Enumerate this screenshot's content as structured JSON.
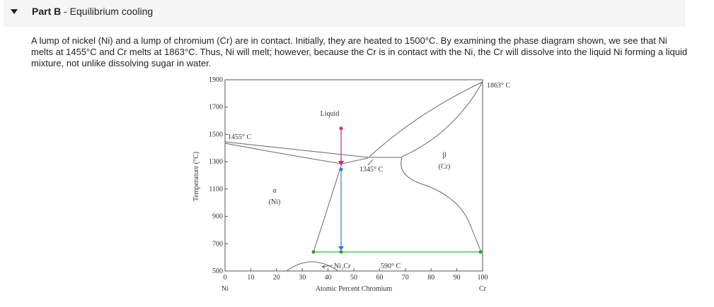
{
  "header": {
    "part": "Part B",
    "title": "- Equilibrium cooling"
  },
  "paragraph": "A lump of nickel (Ni) and a lump of chromium (Cr) are in contact. Initially, they are heated to 1500°C. By examining the phase diagram shown, we see that Ni melts at 1455°C and Cr melts at 1863°C. Thus, Ni will melt; however, because the Cr is in contact with the Ni, the Cr will dissolve into the liquid Ni forming a liquid mixture, not unlike dissolving sugar in water.",
  "figure": {
    "y_axis": {
      "label": "Temperature (°C)",
      "ticks": [
        "1900",
        "1700",
        "1500",
        "1300",
        "1100",
        "900",
        "700",
        "500"
      ]
    },
    "x_axis": {
      "label": "Atomic Percent Chromium",
      "ticks": [
        "0",
        "10",
        "20",
        "30",
        "40",
        "50",
        "60",
        "70",
        "80",
        "90",
        "100"
      ],
      "left_end": "Ni",
      "right_end": "Cr"
    },
    "annotations": {
      "liquid": "Liquid",
      "ni_melt": "1455° C",
      "cr_melt": "1863° C",
      "eutectic": "1345° C",
      "beta": "β",
      "beta_phase": "(Cr)",
      "alpha": "α",
      "alpha_phase": "(Ni)",
      "compound": "Ni₂Cr",
      "compound_temp": "590° C"
    }
  }
}
